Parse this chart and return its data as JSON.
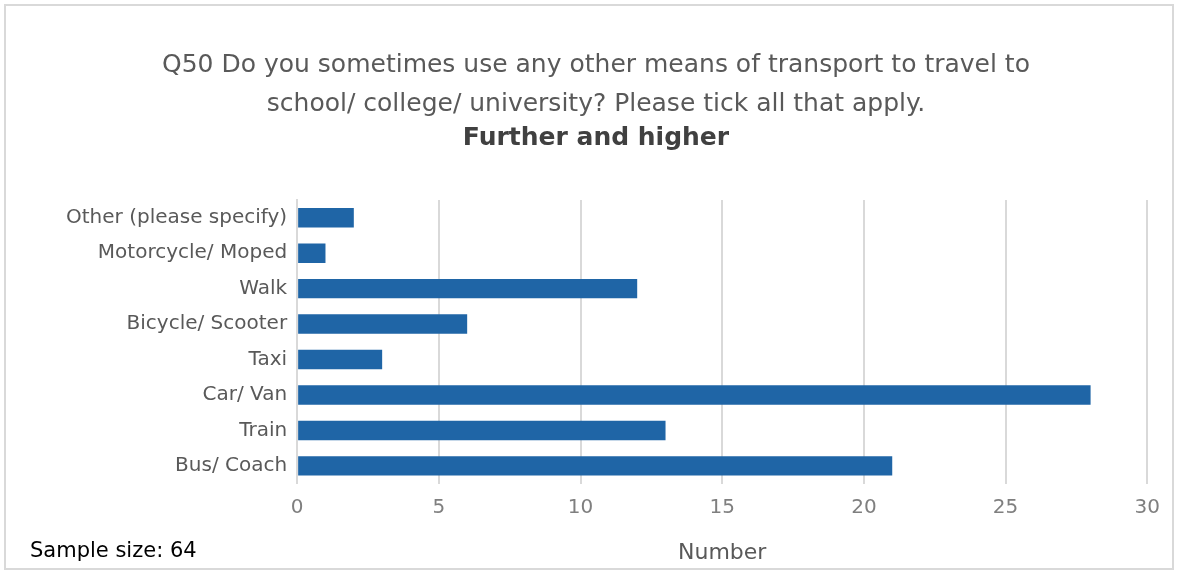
{
  "chart_data": {
    "type": "bar",
    "orientation": "horizontal",
    "title": "Q50 Do you sometimes use any other means of transport to travel to school/ college/ university? Please tick all that apply.",
    "subtitle": "Further and higher",
    "xlabel": "Number",
    "annotations": [
      "Sample size: 64"
    ],
    "categories": [
      "Other (please specify)",
      "Motorcycle/ Moped",
      "Walk",
      "Bicycle/ Scooter",
      "Taxi",
      "Car/ Van",
      "Train",
      "Bus/ Coach"
    ],
    "values": [
      2,
      1,
      12,
      6,
      3,
      28,
      13,
      21
    ],
    "color": "#1f65a6",
    "xlim": [
      0,
      30
    ],
    "xticks": [
      0,
      5,
      10,
      15,
      20,
      25,
      30
    ],
    "grid": "x",
    "legend": false
  }
}
